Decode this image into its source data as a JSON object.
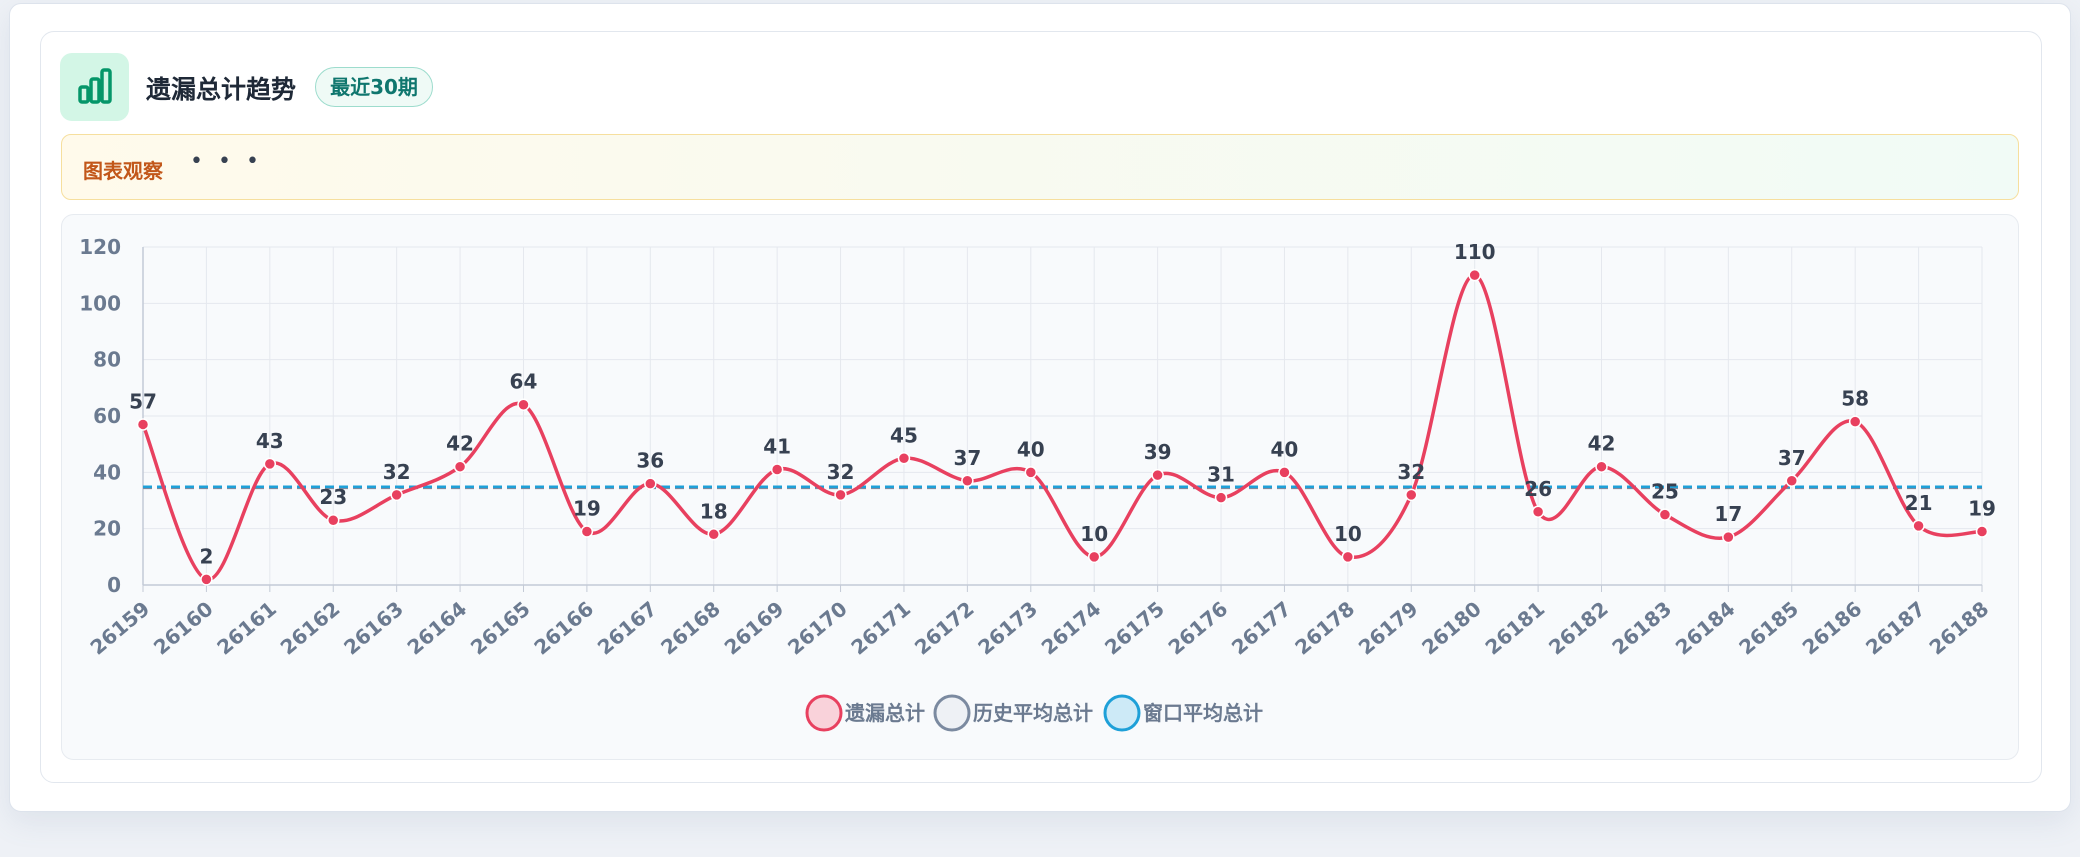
{
  "chart_data": {
    "type": "line",
    "title": "遗漏总计趋势",
    "subtitle": "最近30期",
    "categories": [
      "26159",
      "26160",
      "26161",
      "26162",
      "26163",
      "26164",
      "26165",
      "26166",
      "26167",
      "26168",
      "26169",
      "26170",
      "26171",
      "26172",
      "26173",
      "26174",
      "26175",
      "26176",
      "26177",
      "26178",
      "26179",
      "26180",
      "26181",
      "26182",
      "26183",
      "26184",
      "26185",
      "26186",
      "26187",
      "26188"
    ],
    "series": [
      {
        "name": "遗漏总计",
        "color": "#e8405f",
        "values": [
          57,
          2,
          43,
          23,
          32,
          42,
          64,
          19,
          36,
          18,
          41,
          32,
          45,
          37,
          40,
          10,
          39,
          31,
          40,
          10,
          32,
          110,
          26,
          42,
          25,
          17,
          37,
          58,
          21,
          19
        ]
      },
      {
        "name": "历史平均总计",
        "color": "#7b8aa0",
        "value": 34.5
      },
      {
        "name": "窗口平均总计",
        "color": "#1ea0d8",
        "value": 34.9
      }
    ],
    "ylim": [
      0,
      120
    ],
    "yticks": [
      0,
      20,
      40,
      60,
      80,
      100,
      120
    ],
    "grid": true,
    "legend": "bottom"
  },
  "observation": {
    "title": "图表观察",
    "more": "• • •"
  }
}
